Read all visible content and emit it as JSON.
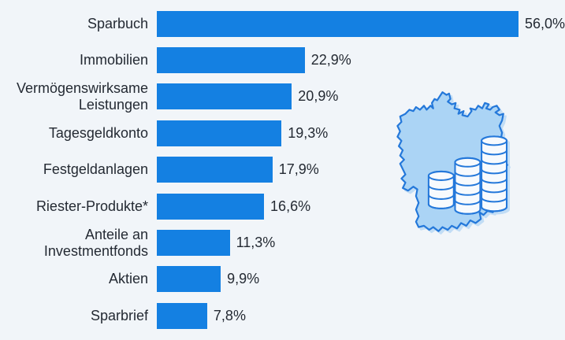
{
  "chart_data": {
    "type": "bar",
    "orientation": "horizontal",
    "categories": [
      "Sparbuch",
      "Immobilien",
      "Vermögenswirksame Leistungen",
      "Tagesgeldkonto",
      "Festgeldanlagen",
      "Riester-Produkte*",
      "Anteile an Investmentfonds",
      "Aktien",
      "Sparbrief"
    ],
    "values": [
      56.0,
      22.9,
      20.9,
      19.3,
      17.9,
      16.6,
      11.3,
      9.9,
      7.8
    ],
    "value_labels": [
      "56,0%",
      "22,9%",
      "20,9%",
      "19,3%",
      "17,9%",
      "16,6%",
      "11,3%",
      "9,9%",
      "7,8%"
    ],
    "unit": "%",
    "decimal_separator": ",",
    "xlim": [
      0,
      56
    ],
    "grid": false,
    "legend": null,
    "title": "",
    "xlabel": "",
    "ylabel": ""
  },
  "colors": {
    "background": "#f1f5f9",
    "bar": "#1480e2",
    "text": "#242a33",
    "map_fill": "#abd4f5",
    "map_stroke": "#2478da",
    "coin_fill": "#f7fafd"
  },
  "illustration": {
    "name": "germany-map-with-coin-stacks",
    "coin_stacks": [
      4,
      6,
      8
    ]
  }
}
